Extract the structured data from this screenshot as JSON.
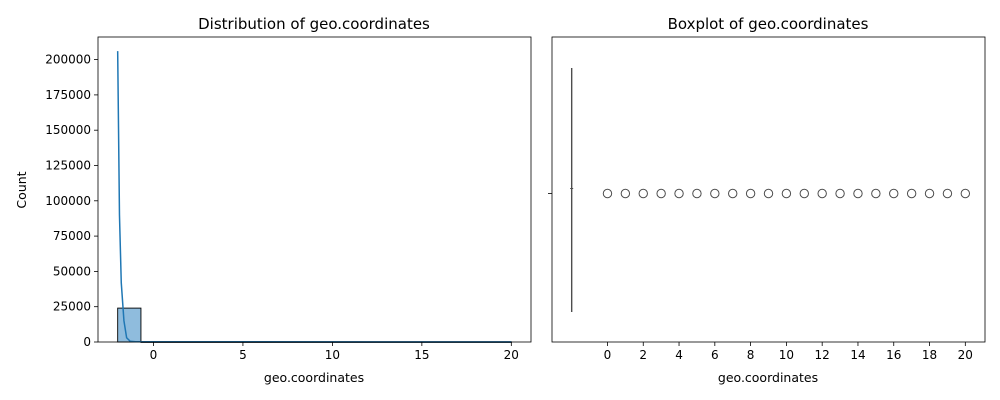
{
  "chart_data": [
    {
      "type": "bar",
      "subtype": "histogram_with_kde",
      "title": "Distribution of geo.coordinates",
      "xlabel": "geo.coordinates",
      "ylabel": "Count",
      "xlim": [
        -3.1,
        21.1
      ],
      "ylim": [
        0,
        216000
      ],
      "xticks": [
        0,
        5,
        10,
        15,
        20
      ],
      "yticks": [
        0,
        25000,
        50000,
        75000,
        100000,
        125000,
        150000,
        175000,
        200000
      ],
      "bins": [
        {
          "x0": -2.0,
          "x1": -0.7,
          "count": 24000
        },
        {
          "x0": -0.7,
          "x1": 20.0,
          "count": 120
        }
      ],
      "kde": [
        [
          -2.0,
          206000
        ],
        [
          -1.9,
          90000
        ],
        [
          -1.8,
          42000
        ],
        [
          -1.65,
          15000
        ],
        [
          -1.5,
          3000
        ],
        [
          -1.3,
          500
        ],
        [
          -1.0,
          150
        ],
        [
          20.0,
          100
        ]
      ],
      "colors": {
        "bar": "#8fbcdd",
        "bar_edge": "#000000",
        "kde": "#1f77b4"
      }
    },
    {
      "type": "boxplot",
      "title": "Boxplot of geo.coordinates",
      "xlabel": "geo.coordinates",
      "xlim": [
        -3.1,
        21.1
      ],
      "xticks": [
        0,
        2,
        4,
        6,
        8,
        10,
        12,
        14,
        16,
        18,
        20
      ],
      "box": {
        "min": -2,
        "q1": -2,
        "median": -2,
        "q3": -2,
        "max": -2
      },
      "outliers": [
        0,
        1,
        2,
        3,
        4,
        5,
        6,
        7,
        8,
        9,
        10,
        11,
        12,
        13,
        14,
        15,
        16,
        17,
        18,
        19,
        20
      ],
      "colors": {
        "box": "#4d4d4d"
      }
    }
  ]
}
